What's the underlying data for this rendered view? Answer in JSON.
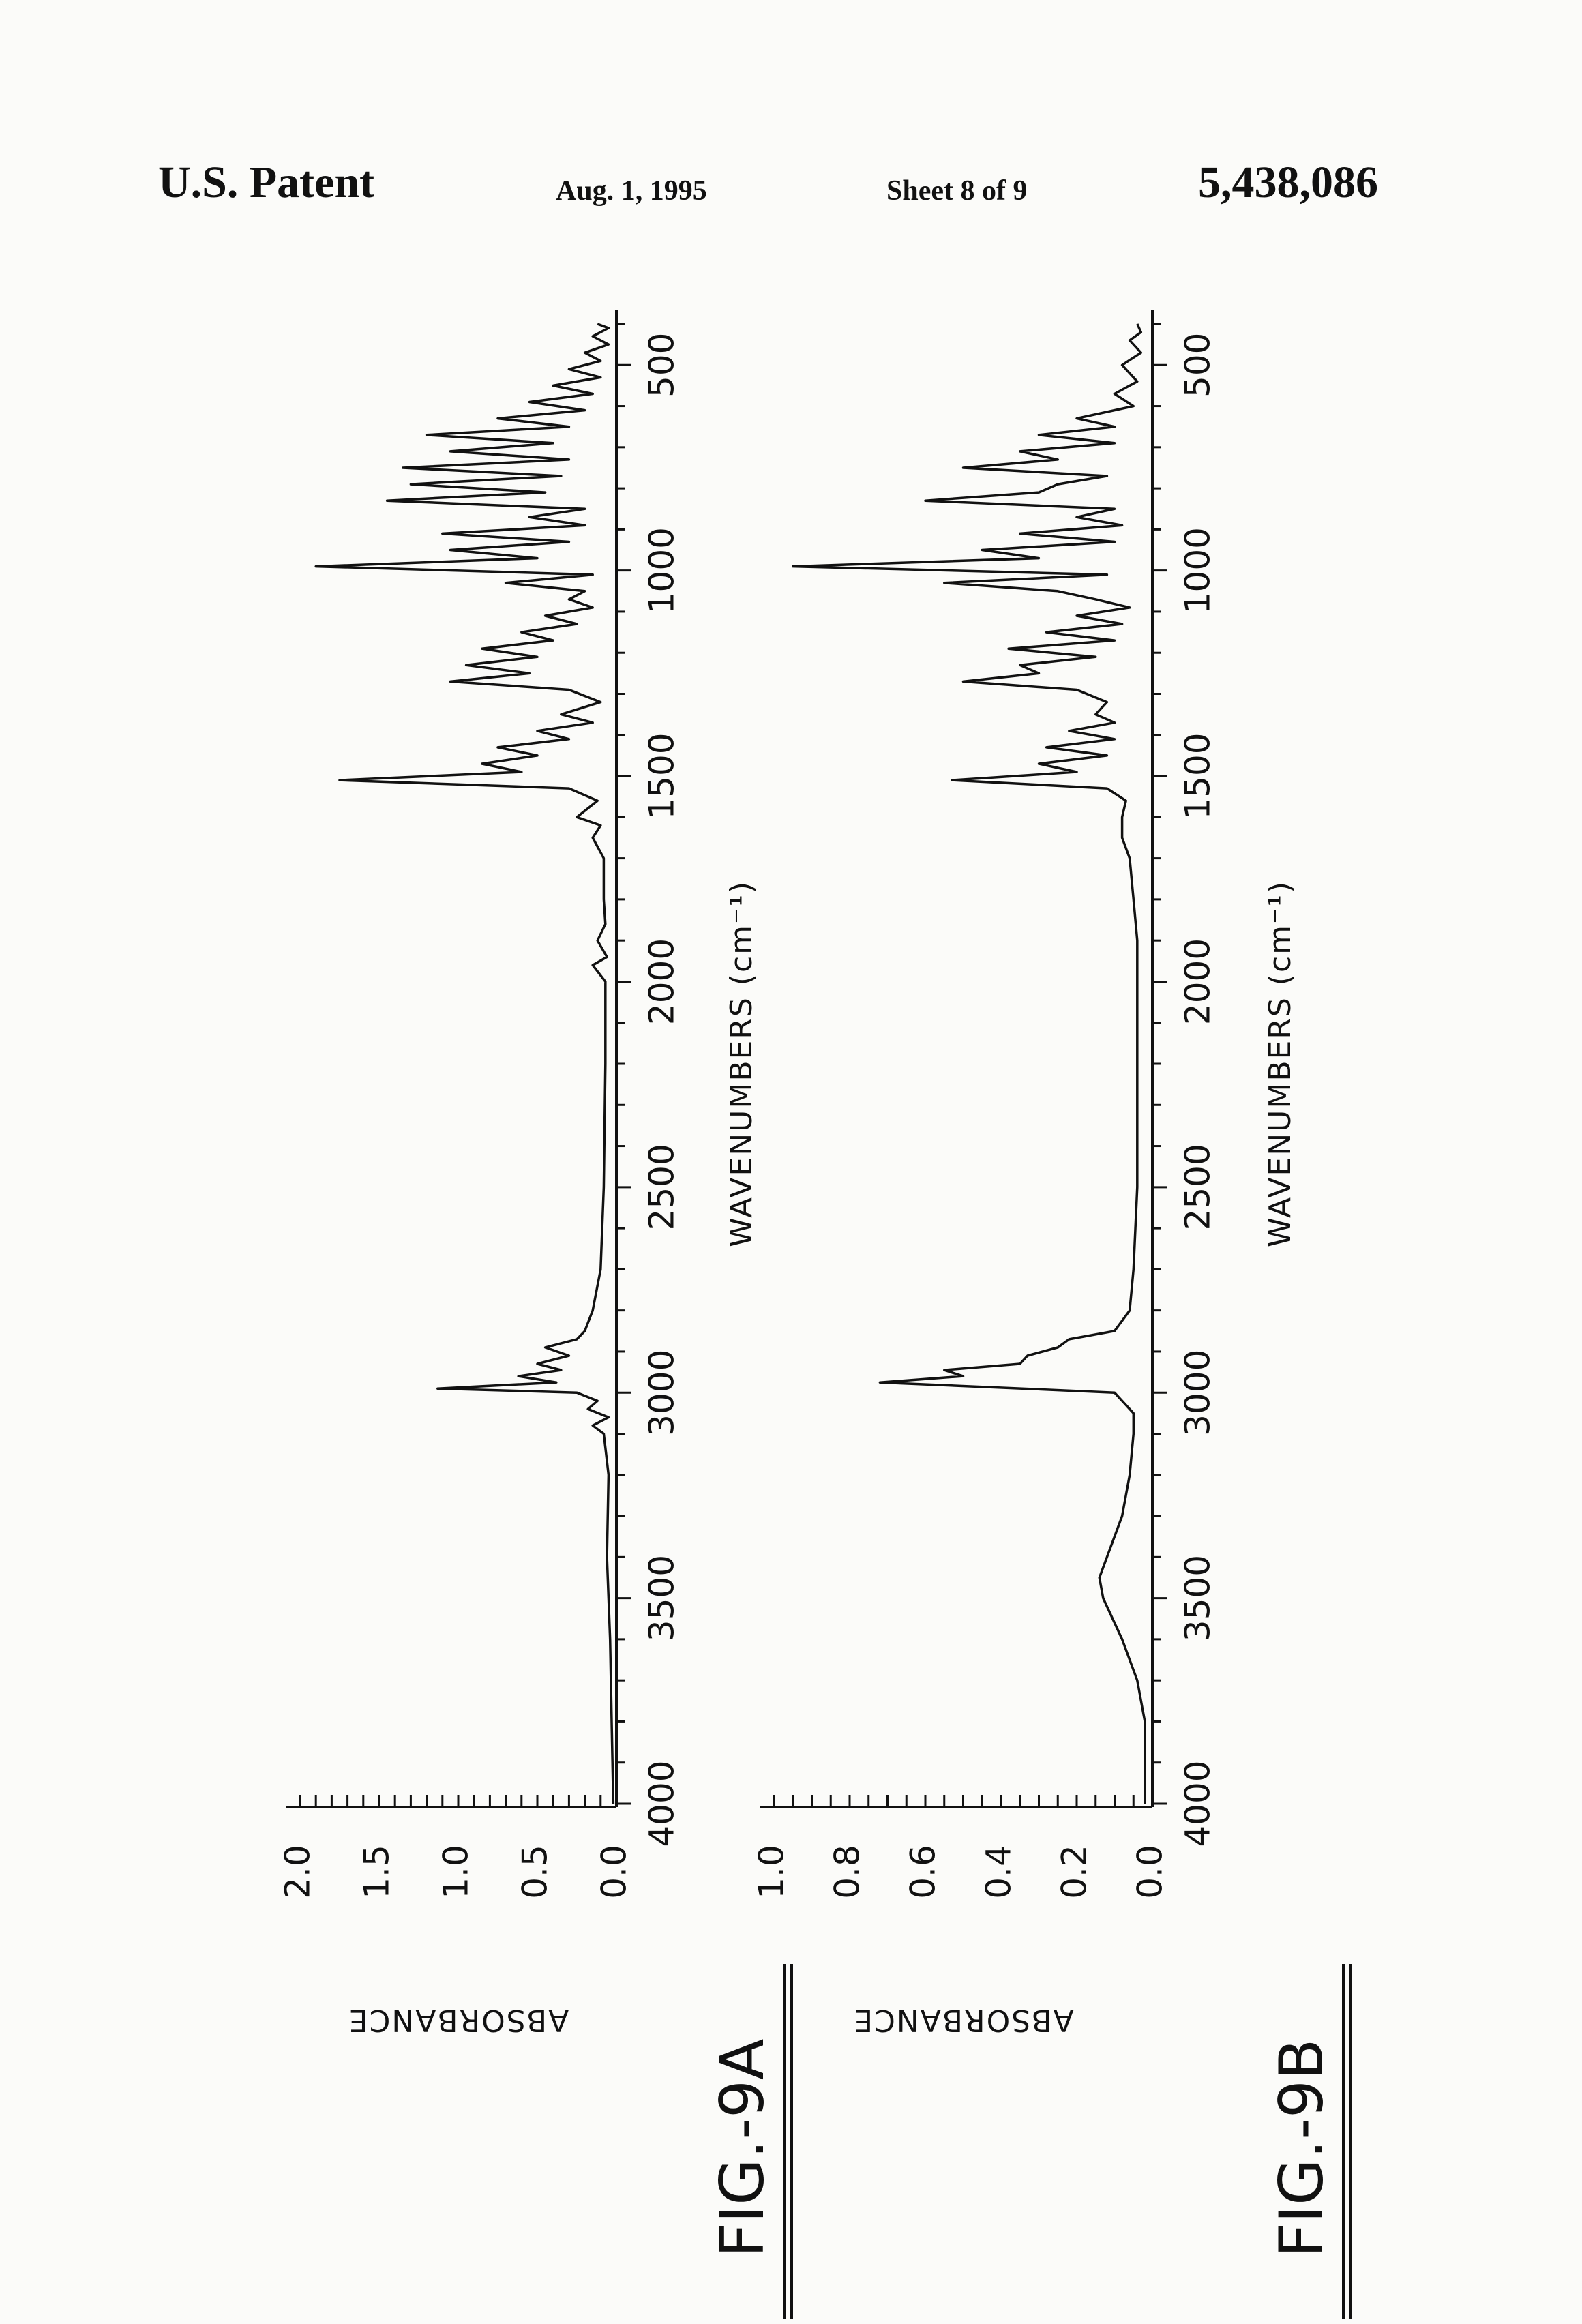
{
  "header": {
    "left": "U.S. Patent",
    "date": "Aug. 1, 1995",
    "sheet": "Sheet 8 of 9",
    "patent_number": "5,438,086"
  },
  "figures": [
    "FIG.-9A",
    "FIG.-9B"
  ],
  "chart_data": [
    {
      "type": "line",
      "title": "",
      "figure_label": "FIG.-9A",
      "xlabel": "WAVENUMBERS (cm⁻¹)",
      "ylabel": "ABSORBANCE",
      "xlim": [
        4000,
        400
      ],
      "ylim": [
        0,
        2.0
      ],
      "x_ticks": [
        "4000",
        "3500",
        "3000",
        "2500",
        "2000",
        "1500",
        "1000",
        "500"
      ],
      "y_ticks": [
        "0.0",
        "0.5",
        "1.0",
        "1.5",
        "2.0"
      ],
      "series": [
        {
          "x": [
            4000,
            3800,
            3600,
            3500,
            3400,
            3200,
            3100,
            3080,
            3060,
            3040,
            3020,
            3000,
            2990,
            2975,
            2960,
            2945,
            2930,
            2910,
            2890,
            2870,
            2850,
            2800,
            2700,
            2500,
            2200,
            2000,
            1960,
            1940,
            1900,
            1860,
            1800,
            1700,
            1650,
            1620,
            1600,
            1560,
            1530,
            1510,
            1490,
            1470,
            1450,
            1430,
            1410,
            1390,
            1370,
            1350,
            1320,
            1290,
            1270,
            1250,
            1230,
            1210,
            1190,
            1170,
            1150,
            1130,
            1110,
            1090,
            1070,
            1050,
            1030,
            1010,
            990,
            970,
            950,
            930,
            910,
            890,
            870,
            850,
            830,
            810,
            790,
            770,
            750,
            730,
            710,
            690,
            670,
            650,
            630,
            610,
            590,
            570,
            550,
            530,
            510,
            490,
            470,
            450,
            430,
            410,
            400
          ],
          "y": [
            0.02,
            0.03,
            0.04,
            0.05,
            0.06,
            0.05,
            0.08,
            0.15,
            0.05,
            0.18,
            0.12,
            0.25,
            1.13,
            0.38,
            0.62,
            0.35,
            0.5,
            0.3,
            0.45,
            0.25,
            0.2,
            0.15,
            0.1,
            0.08,
            0.07,
            0.07,
            0.15,
            0.06,
            0.12,
            0.07,
            0.08,
            0.08,
            0.15,
            0.1,
            0.25,
            0.12,
            0.3,
            1.75,
            0.6,
            0.85,
            0.5,
            0.75,
            0.3,
            0.5,
            0.15,
            0.35,
            0.1,
            0.3,
            1.05,
            0.55,
            0.95,
            0.5,
            0.85,
            0.4,
            0.6,
            0.25,
            0.45,
            0.15,
            0.3,
            0.2,
            0.7,
            0.15,
            1.9,
            0.5,
            1.05,
            0.3,
            1.1,
            0.2,
            0.55,
            0.2,
            1.45,
            0.45,
            1.3,
            0.35,
            1.35,
            0.3,
            1.05,
            0.4,
            1.2,
            0.3,
            0.75,
            0.2,
            0.55,
            0.15,
            0.4,
            0.1,
            0.3,
            0.1,
            0.2,
            0.05,
            0.15,
            0.05,
            0.12
          ]
        }
      ]
    },
    {
      "type": "line",
      "title": "",
      "figure_label": "FIG.-9B",
      "xlabel": "WAVENUMBERS (cm⁻¹)",
      "ylabel": "ABSORBANCE",
      "xlim": [
        4000,
        400
      ],
      "ylim": [
        0,
        1.0
      ],
      "x_ticks": [
        "4000",
        "3500",
        "3000",
        "2500",
        "2000",
        "1500",
        "1000",
        "500"
      ],
      "y_ticks": [
        "0.0",
        "0.2",
        "0.4",
        "0.6",
        "0.8",
        "1.0"
      ],
      "series": [
        {
          "x": [
            4000,
            3900,
            3800,
            3700,
            3600,
            3500,
            3450,
            3400,
            3300,
            3200,
            3100,
            3050,
            3000,
            2975,
            2960,
            2945,
            2930,
            2910,
            2890,
            2870,
            2850,
            2800,
            2700,
            2500,
            2200,
            2000,
            1900,
            1800,
            1700,
            1650,
            1600,
            1560,
            1530,
            1510,
            1490,
            1470,
            1450,
            1430,
            1410,
            1390,
            1370,
            1350,
            1320,
            1290,
            1270,
            1250,
            1230,
            1210,
            1190,
            1170,
            1150,
            1130,
            1110,
            1090,
            1070,
            1050,
            1030,
            1010,
            990,
            970,
            950,
            930,
            910,
            890,
            870,
            850,
            830,
            810,
            790,
            770,
            750,
            730,
            710,
            690,
            670,
            650,
            630,
            600,
            570,
            540,
            500,
            470,
            440,
            420,
            400
          ],
          "y": [
            0.02,
            0.02,
            0.02,
            0.04,
            0.08,
            0.13,
            0.14,
            0.12,
            0.08,
            0.06,
            0.05,
            0.05,
            0.1,
            0.72,
            0.5,
            0.55,
            0.35,
            0.33,
            0.25,
            0.22,
            0.1,
            0.06,
            0.05,
            0.04,
            0.04,
            0.04,
            0.04,
            0.05,
            0.06,
            0.08,
            0.08,
            0.07,
            0.12,
            0.53,
            0.2,
            0.3,
            0.12,
            0.28,
            0.1,
            0.22,
            0.1,
            0.15,
            0.12,
            0.2,
            0.5,
            0.3,
            0.35,
            0.15,
            0.38,
            0.1,
            0.28,
            0.08,
            0.2,
            0.06,
            0.15,
            0.25,
            0.55,
            0.12,
            0.95,
            0.3,
            0.45,
            0.1,
            0.35,
            0.08,
            0.2,
            0.1,
            0.6,
            0.3,
            0.25,
            0.12,
            0.5,
            0.25,
            0.35,
            0.1,
            0.3,
            0.1,
            0.2,
            0.05,
            0.1,
            0.04,
            0.08,
            0.03,
            0.06,
            0.03,
            0.04
          ]
        }
      ]
    }
  ]
}
